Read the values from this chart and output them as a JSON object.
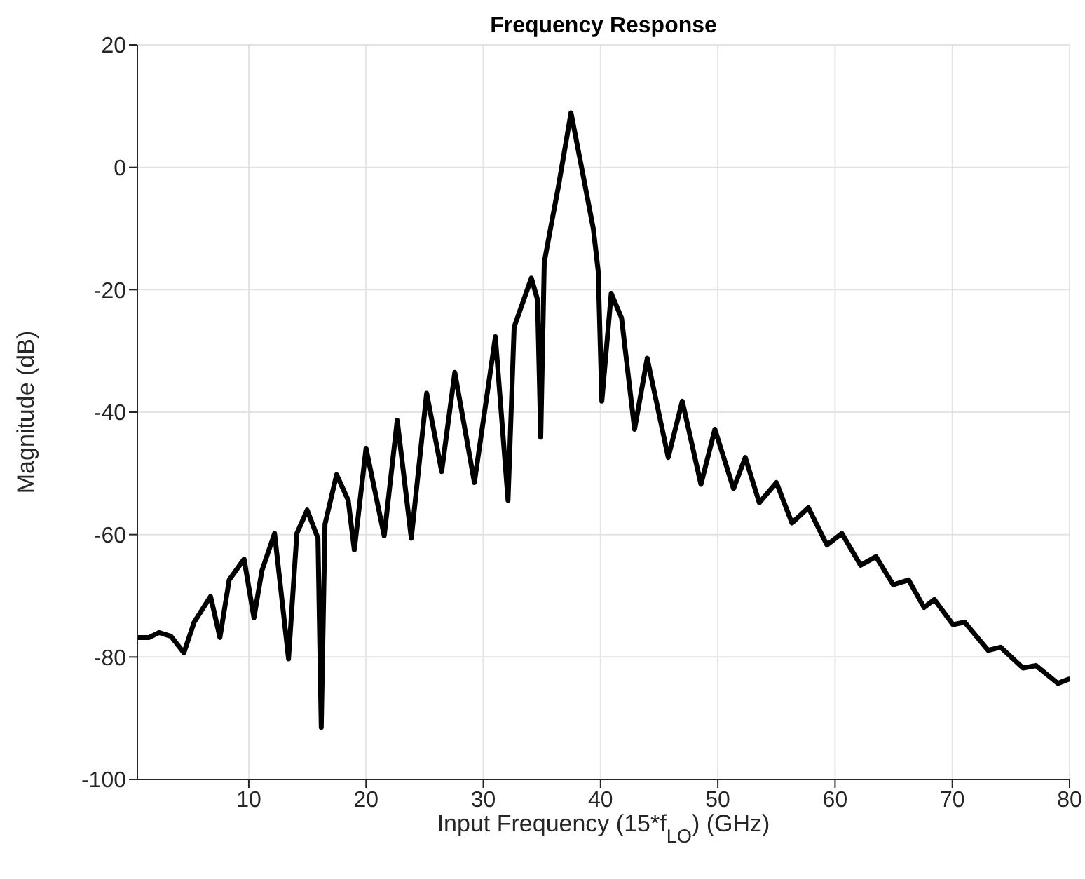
{
  "chart_data": {
    "type": "line",
    "title": "Frequency Response",
    "xlabel": "Input Frequency (15*f$_{LO}$) (GHz)",
    "ylabel": "Magnitude (dB)",
    "xlim": [
      0.5,
      80
    ],
    "xticks": [
      10,
      20,
      30,
      40,
      50,
      60,
      70,
      80
    ],
    "ylim": [
      -100,
      20
    ],
    "yticks": [
      -100,
      -80,
      -60,
      -40,
      -20,
      0,
      20
    ],
    "grid": true,
    "marker": "none",
    "line_style": "solid",
    "series": [
      {
        "color": "#000000",
        "x": [
          0.5,
          1.5,
          2.35,
          3.36,
          4.47,
          5.34,
          6.74,
          7.54,
          8.33,
          9.6,
          10.44,
          11.12,
          12.2,
          13.39,
          14.1,
          14.98,
          15.9,
          16.18,
          16.5,
          17.49,
          18.48,
          19.0,
          20.0,
          21.55,
          22.66,
          23.86,
          25.17,
          26.45,
          27.57,
          29.24,
          31.03,
          32.11,
          32.63,
          34.1,
          34.62,
          34.9,
          35.2,
          35.8,
          36.4,
          37.48,
          38.4,
          39.39,
          39.8,
          40.11,
          40.91,
          41.79,
          42.9,
          43.98,
          45.77,
          46.97,
          48.56,
          49.75,
          51.34,
          52.34,
          53.54,
          55.0,
          56.32,
          57.72,
          59.31,
          60.58,
          62.17,
          63.49,
          64.96,
          66.27,
          67.59,
          68.47,
          70.06,
          71.05,
          73.05,
          74.12,
          76.03,
          77.14,
          79.0,
          79.94
        ],
        "values": [
          -76.8,
          -76.8,
          -76.0,
          -76.6,
          -79.3,
          -74.3,
          -70.1,
          -76.8,
          -67.4,
          -64.0,
          -73.6,
          -65.9,
          -59.8,
          -80.3,
          -59.8,
          -56.0,
          -60.6,
          -91.5,
          -58.3,
          -50.2,
          -54.4,
          -62.5,
          -45.9,
          -60.2,
          -41.3,
          -60.6,
          -36.9,
          -49.7,
          -33.5,
          -51.5,
          -27.7,
          -54.4,
          -26.1,
          -18.1,
          -21.6,
          -44.1,
          -15.5,
          -9.3,
          -3.2,
          8.9,
          -0.2,
          -10.1,
          -17.0,
          -38.2,
          -20.6,
          -24.6,
          -42.8,
          -31.2,
          -47.4,
          -38.2,
          -51.8,
          -42.8,
          -52.5,
          -47.4,
          -54.8,
          -51.5,
          -58.1,
          -55.6,
          -61.7,
          -59.8,
          -65.0,
          -63.6,
          -68.2,
          -67.4,
          -71.9,
          -70.6,
          -74.7,
          -74.3,
          -78.9,
          -78.4,
          -81.8,
          -81.4,
          -84.3,
          -83.6
        ]
      }
    ]
  }
}
